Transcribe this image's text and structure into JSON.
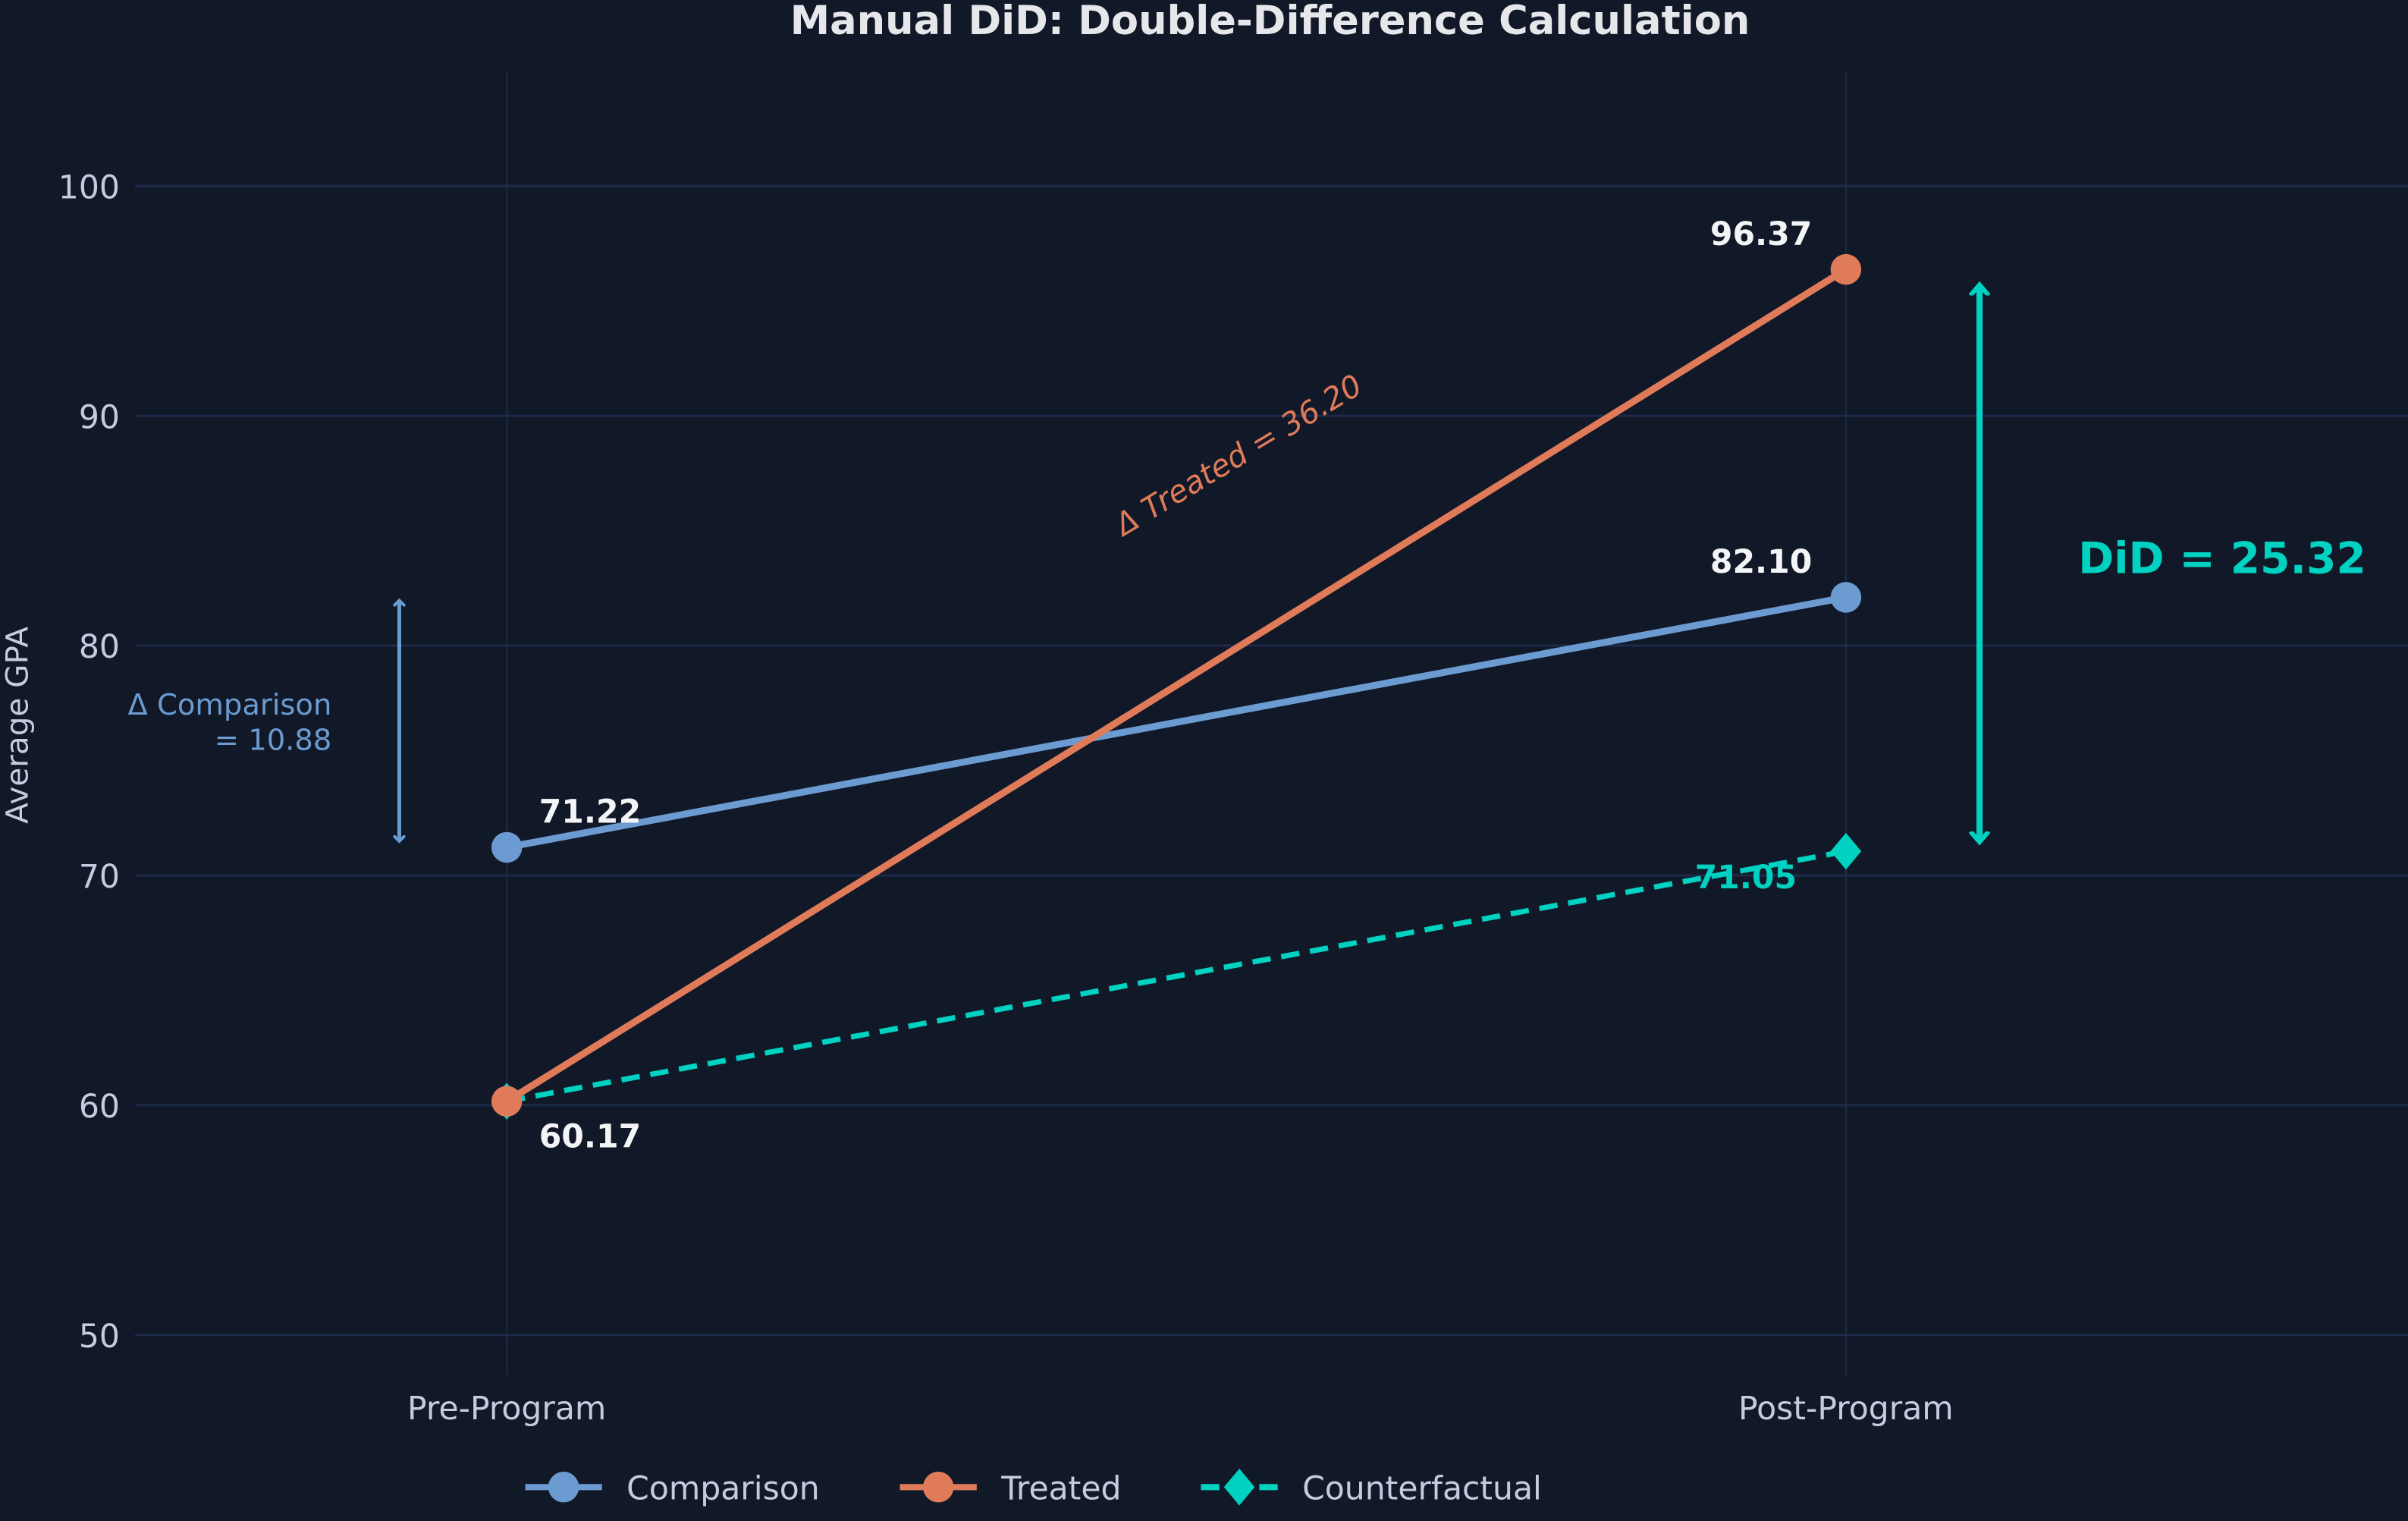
{
  "chart_data": {
    "type": "line",
    "title": "Manual DiD: Double-Difference Calculation",
    "xlabel": "",
    "ylabel": "Average GPA",
    "categories": [
      "Pre-Program",
      "Post-Program"
    ],
    "ylim": [
      48,
      105
    ],
    "yticks": [
      50,
      60,
      70,
      80,
      90,
      100
    ],
    "grid": true,
    "legend_position": "bottom",
    "series": [
      {
        "name": "Comparison",
        "values": [
          71.22,
          82.1
        ],
        "color": "#6b9bd1",
        "marker": "circle",
        "style": "solid",
        "labels": [
          "71.22",
          "82.10"
        ]
      },
      {
        "name": "Treated",
        "values": [
          60.17,
          96.37
        ],
        "color": "#e07b5a",
        "marker": "circle",
        "style": "solid",
        "labels": [
          "60.17",
          "96.37"
        ]
      },
      {
        "name": "Counterfactual",
        "values": [
          60.17,
          71.05
        ],
        "color": "#00d1c1",
        "marker": "diamond",
        "style": "dashed",
        "labels": [
          "",
          "71.05"
        ]
      }
    ],
    "annotations": {
      "delta_comparison": {
        "line1": "Δ Comparison",
        "line2": "= 10.88",
        "from": 82.1,
        "to": 71.22
      },
      "delta_treated": "Δ Treated = 36.20",
      "did": {
        "text": "DiD = 25.32",
        "from": 96.37,
        "to": 71.05
      }
    }
  },
  "colors": {
    "background": "#111827",
    "grid": "#1e2a4a",
    "text": "#e5e7eb",
    "tick": "#c5cbe0"
  }
}
